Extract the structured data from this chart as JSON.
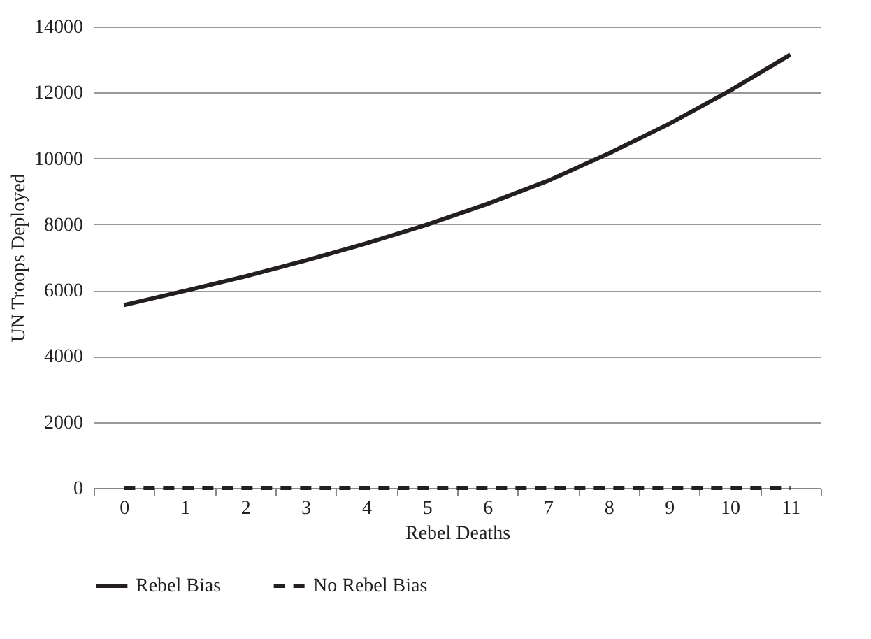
{
  "chart_data": {
    "type": "line",
    "xlabel": "Rebel Deaths",
    "ylabel": "UN Troops Deployed",
    "categories": [
      "0",
      "1",
      "2",
      "3",
      "4",
      "5",
      "6",
      "7",
      "8",
      "9",
      "10",
      "11"
    ],
    "series": [
      {
        "name": "Rebel Bias",
        "color": "#231f20",
        "line_style": "solid",
        "values": [
          5550,
          5980,
          6420,
          6900,
          7420,
          7990,
          8620,
          9320,
          10150,
          11050,
          12050,
          13150
        ]
      },
      {
        "name": "No Rebel Bias",
        "color": "#231f20",
        "line_style": "dashed",
        "values": [
          0,
          0,
          0,
          0,
          0,
          0,
          0,
          0,
          0,
          0,
          0,
          0
        ]
      }
    ],
    "ylim": [
      0,
      14000
    ],
    "yticks": [
      0,
      2000,
      4000,
      6000,
      8000,
      10000,
      12000,
      14000
    ],
    "grid": "y",
    "legend": "bottom"
  }
}
